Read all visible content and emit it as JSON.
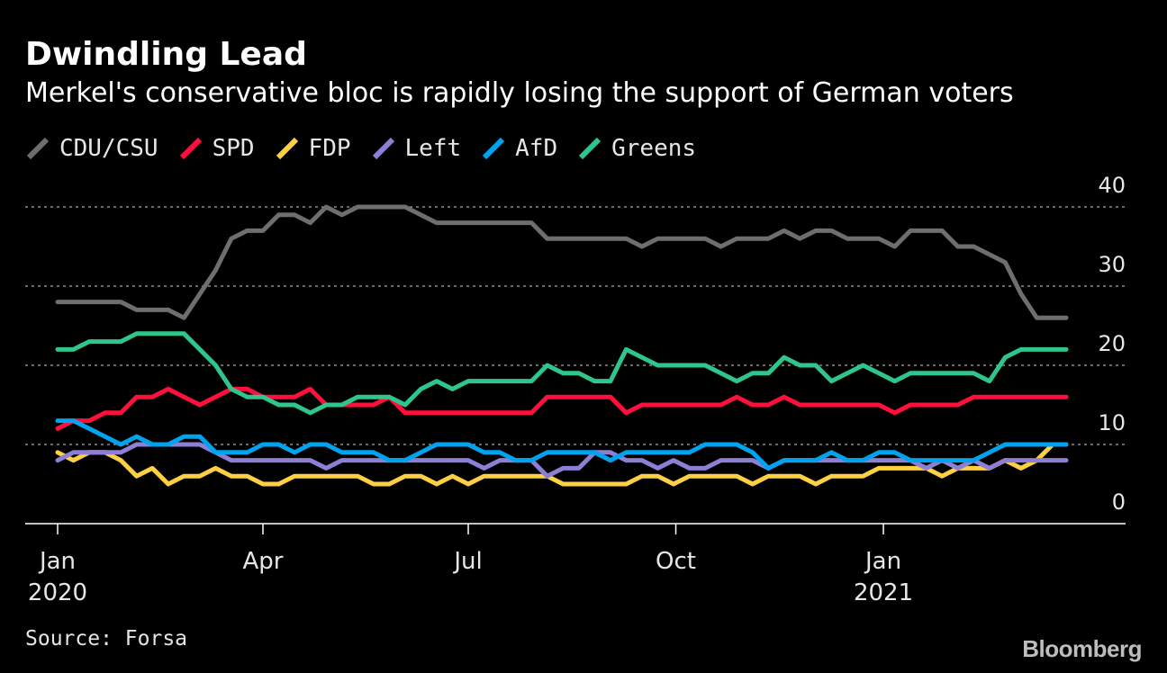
{
  "header": {
    "title": "Dwindling Lead",
    "subtitle": "Merkel's conservative bloc is rapidly losing the support of German voters"
  },
  "footer": {
    "source": "Source: Forsa",
    "brand": "Bloomberg"
  },
  "chart_data": {
    "type": "line",
    "title": "Dwindling Lead",
    "subtitle": "Merkel's conservative bloc is rapidly losing the support of German voters",
    "xlabel": "",
    "ylabel": "",
    "x_range": [
      "2020-01-01",
      "2021-03-23"
    ],
    "ylim": [
      0,
      40
    ],
    "yticks": [
      0,
      10,
      20,
      30,
      40
    ],
    "ygrid": true,
    "legend_position": "top-left",
    "x_ticks": [
      {
        "date": "2020-01-01",
        "label": "Jan",
        "sublabel": "2020"
      },
      {
        "date": "2020-04-01",
        "label": "Apr",
        "sublabel": ""
      },
      {
        "date": "2020-07-01",
        "label": "Jul",
        "sublabel": ""
      },
      {
        "date": "2020-10-01",
        "label": "Oct",
        "sublabel": ""
      },
      {
        "date": "2021-01-01",
        "label": "Jan",
        "sublabel": "2021"
      }
    ],
    "series": [
      {
        "name": "CDU/CSU",
        "color": "#6e6e6e",
        "x": [
          "2020-01-01",
          "2020-01-08",
          "2020-01-15",
          "2020-01-22",
          "2020-01-29",
          "2020-02-05",
          "2020-02-12",
          "2020-02-19",
          "2020-02-26",
          "2020-03-04",
          "2020-03-11",
          "2020-03-18",
          "2020-03-25",
          "2020-04-01",
          "2020-04-08",
          "2020-04-15",
          "2020-04-22",
          "2020-04-29",
          "2020-05-06",
          "2020-05-13",
          "2020-05-20",
          "2020-05-27",
          "2020-06-03",
          "2020-06-10",
          "2020-06-17",
          "2020-06-24",
          "2020-07-01",
          "2020-07-08",
          "2020-07-15",
          "2020-07-22",
          "2020-07-29",
          "2020-08-05",
          "2020-08-12",
          "2020-08-19",
          "2020-08-26",
          "2020-09-02",
          "2020-09-09",
          "2020-09-16",
          "2020-09-23",
          "2020-09-30",
          "2020-10-07",
          "2020-10-14",
          "2020-10-21",
          "2020-10-28",
          "2020-11-04",
          "2020-11-11",
          "2020-11-18",
          "2020-11-25",
          "2020-12-02",
          "2020-12-09",
          "2020-12-16",
          "2020-12-23",
          "2020-12-30",
          "2021-01-06",
          "2021-01-13",
          "2021-01-20",
          "2021-01-27",
          "2021-02-03",
          "2021-02-10",
          "2021-02-17",
          "2021-02-24",
          "2021-03-03",
          "2021-03-10",
          "2021-03-17",
          "2021-03-23"
        ],
        "values": [
          28,
          28,
          28,
          28,
          28,
          27,
          27,
          27,
          26,
          29,
          32,
          36,
          37,
          37,
          39,
          39,
          38,
          40,
          39,
          40,
          40,
          40,
          40,
          39,
          38,
          38,
          38,
          38,
          38,
          38,
          38,
          36,
          36,
          36,
          36,
          36,
          36,
          35,
          36,
          36,
          36,
          36,
          35,
          36,
          36,
          36,
          37,
          36,
          37,
          37,
          36,
          36,
          36,
          35,
          37,
          37,
          37,
          35,
          35,
          34,
          33,
          29,
          26,
          26,
          26
        ]
      },
      {
        "name": "SPD",
        "color": "#ff0f3c",
        "x": [
          "2020-01-01",
          "2020-01-08",
          "2020-01-15",
          "2020-01-22",
          "2020-01-29",
          "2020-02-05",
          "2020-02-12",
          "2020-02-19",
          "2020-02-26",
          "2020-03-04",
          "2020-03-11",
          "2020-03-18",
          "2020-03-25",
          "2020-04-01",
          "2020-04-08",
          "2020-04-15",
          "2020-04-22",
          "2020-04-29",
          "2020-05-06",
          "2020-05-13",
          "2020-05-20",
          "2020-05-27",
          "2020-06-03",
          "2020-06-10",
          "2020-06-17",
          "2020-06-24",
          "2020-07-01",
          "2020-07-08",
          "2020-07-15",
          "2020-07-22",
          "2020-07-29",
          "2020-08-05",
          "2020-08-12",
          "2020-08-19",
          "2020-08-26",
          "2020-09-02",
          "2020-09-09",
          "2020-09-16",
          "2020-09-23",
          "2020-09-30",
          "2020-10-07",
          "2020-10-14",
          "2020-10-21",
          "2020-10-28",
          "2020-11-04",
          "2020-11-11",
          "2020-11-18",
          "2020-11-25",
          "2020-12-02",
          "2020-12-09",
          "2020-12-16",
          "2020-12-23",
          "2020-12-30",
          "2021-01-06",
          "2021-01-13",
          "2021-01-20",
          "2021-01-27",
          "2021-02-03",
          "2021-02-10",
          "2021-02-17",
          "2021-02-24",
          "2021-03-03",
          "2021-03-10",
          "2021-03-17",
          "2021-03-23"
        ],
        "values": [
          12,
          13,
          13,
          14,
          14,
          16,
          16,
          17,
          16,
          15,
          16,
          17,
          17,
          16,
          16,
          16,
          17,
          15,
          15,
          15,
          15,
          16,
          14,
          14,
          14,
          14,
          14,
          14,
          14,
          14,
          14,
          16,
          16,
          16,
          16,
          16,
          14,
          15,
          15,
          15,
          15,
          15,
          15,
          16,
          15,
          15,
          16,
          15,
          15,
          15,
          15,
          15,
          15,
          14,
          15,
          15,
          15,
          15,
          16,
          16,
          16,
          16,
          16,
          16,
          16
        ]
      },
      {
        "name": "FDP",
        "color": "#fdd043",
        "x": [
          "2020-01-01",
          "2020-01-08",
          "2020-01-15",
          "2020-01-22",
          "2020-01-29",
          "2020-02-05",
          "2020-02-12",
          "2020-02-19",
          "2020-02-26",
          "2020-03-04",
          "2020-03-11",
          "2020-03-18",
          "2020-03-25",
          "2020-04-01",
          "2020-04-08",
          "2020-04-15",
          "2020-04-22",
          "2020-04-29",
          "2020-05-06",
          "2020-05-13",
          "2020-05-20",
          "2020-05-27",
          "2020-06-03",
          "2020-06-10",
          "2020-06-17",
          "2020-06-24",
          "2020-07-01",
          "2020-07-08",
          "2020-07-15",
          "2020-07-22",
          "2020-07-29",
          "2020-08-05",
          "2020-08-12",
          "2020-08-19",
          "2020-08-26",
          "2020-09-02",
          "2020-09-09",
          "2020-09-16",
          "2020-09-23",
          "2020-09-30",
          "2020-10-07",
          "2020-10-14",
          "2020-10-21",
          "2020-10-28",
          "2020-11-04",
          "2020-11-11",
          "2020-11-18",
          "2020-11-25",
          "2020-12-02",
          "2020-12-09",
          "2020-12-16",
          "2020-12-23",
          "2020-12-30",
          "2021-01-06",
          "2021-01-13",
          "2021-01-20",
          "2021-01-27",
          "2021-02-03",
          "2021-02-10",
          "2021-02-17",
          "2021-02-24",
          "2021-03-03",
          "2021-03-10",
          "2021-03-17",
          "2021-03-23"
        ],
        "values": [
          9,
          8,
          9,
          9,
          8,
          6,
          7,
          5,
          6,
          6,
          7,
          6,
          6,
          5,
          5,
          6,
          6,
          6,
          6,
          6,
          5,
          5,
          6,
          6,
          5,
          6,
          5,
          6,
          6,
          6,
          6,
          6,
          5,
          5,
          5,
          5,
          5,
          6,
          6,
          5,
          6,
          6,
          6,
          6,
          5,
          6,
          6,
          6,
          5,
          6,
          6,
          6,
          7,
          7,
          7,
          7,
          6,
          7,
          7,
          7,
          8,
          7,
          8,
          10,
          10
        ]
      },
      {
        "name": "Left",
        "color": "#8e7fd6",
        "x": [
          "2020-01-01",
          "2020-01-08",
          "2020-01-15",
          "2020-01-22",
          "2020-01-29",
          "2020-02-05",
          "2020-02-12",
          "2020-02-19",
          "2020-02-26",
          "2020-03-04",
          "2020-03-11",
          "2020-03-18",
          "2020-03-25",
          "2020-04-01",
          "2020-04-08",
          "2020-04-15",
          "2020-04-22",
          "2020-04-29",
          "2020-05-06",
          "2020-05-13",
          "2020-05-20",
          "2020-05-27",
          "2020-06-03",
          "2020-06-10",
          "2020-06-17",
          "2020-06-24",
          "2020-07-01",
          "2020-07-08",
          "2020-07-15",
          "2020-07-22",
          "2020-07-29",
          "2020-08-05",
          "2020-08-12",
          "2020-08-19",
          "2020-08-26",
          "2020-09-02",
          "2020-09-09",
          "2020-09-16",
          "2020-09-23",
          "2020-09-30",
          "2020-10-07",
          "2020-10-14",
          "2020-10-21",
          "2020-10-28",
          "2020-11-04",
          "2020-11-11",
          "2020-11-18",
          "2020-11-25",
          "2020-12-02",
          "2020-12-09",
          "2020-12-16",
          "2020-12-23",
          "2020-12-30",
          "2021-01-06",
          "2021-01-13",
          "2021-01-20",
          "2021-01-27",
          "2021-02-03",
          "2021-02-10",
          "2021-02-17",
          "2021-02-24",
          "2021-03-03",
          "2021-03-10",
          "2021-03-17",
          "2021-03-23"
        ],
        "values": [
          8,
          9,
          9,
          9,
          9,
          10,
          10,
          10,
          10,
          10,
          9,
          8,
          8,
          8,
          8,
          8,
          8,
          7,
          8,
          8,
          8,
          8,
          8,
          8,
          8,
          8,
          8,
          7,
          8,
          8,
          8,
          6,
          7,
          7,
          9,
          9,
          8,
          8,
          7,
          8,
          7,
          7,
          8,
          8,
          8,
          7,
          8,
          8,
          8,
          8,
          8,
          8,
          8,
          8,
          8,
          7,
          8,
          7,
          8,
          7,
          8,
          8,
          8,
          8,
          8
        ]
      },
      {
        "name": "AfD",
        "color": "#00a3ee",
        "x": [
          "2020-01-01",
          "2020-01-08",
          "2020-01-15",
          "2020-01-22",
          "2020-01-29",
          "2020-02-05",
          "2020-02-12",
          "2020-02-19",
          "2020-02-26",
          "2020-03-04",
          "2020-03-11",
          "2020-03-18",
          "2020-03-25",
          "2020-04-01",
          "2020-04-08",
          "2020-04-15",
          "2020-04-22",
          "2020-04-29",
          "2020-05-06",
          "2020-05-13",
          "2020-05-20",
          "2020-05-27",
          "2020-06-03",
          "2020-06-10",
          "2020-06-17",
          "2020-06-24",
          "2020-07-01",
          "2020-07-08",
          "2020-07-15",
          "2020-07-22",
          "2020-07-29",
          "2020-08-05",
          "2020-08-12",
          "2020-08-19",
          "2020-08-26",
          "2020-09-02",
          "2020-09-09",
          "2020-09-16",
          "2020-09-23",
          "2020-09-30",
          "2020-10-07",
          "2020-10-14",
          "2020-10-21",
          "2020-10-28",
          "2020-11-04",
          "2020-11-11",
          "2020-11-18",
          "2020-11-25",
          "2020-12-02",
          "2020-12-09",
          "2020-12-16",
          "2020-12-23",
          "2020-12-30",
          "2021-01-06",
          "2021-01-13",
          "2021-01-20",
          "2021-01-27",
          "2021-02-03",
          "2021-02-10",
          "2021-02-17",
          "2021-02-24",
          "2021-03-03",
          "2021-03-10",
          "2021-03-17",
          "2021-03-23"
        ],
        "values": [
          13,
          13,
          12,
          11,
          10,
          11,
          10,
          10,
          11,
          11,
          9,
          9,
          9,
          10,
          10,
          9,
          10,
          10,
          9,
          9,
          9,
          8,
          8,
          9,
          10,
          10,
          10,
          9,
          9,
          8,
          8,
          9,
          9,
          9,
          9,
          8,
          9,
          9,
          9,
          9,
          9,
          10,
          10,
          10,
          9,
          7,
          8,
          8,
          8,
          9,
          8,
          8,
          9,
          9,
          8,
          8,
          8,
          8,
          8,
          9,
          10,
          10,
          10,
          10,
          10
        ]
      },
      {
        "name": "Greens",
        "color": "#2ec68c",
        "x": [
          "2020-01-01",
          "2020-01-08",
          "2020-01-15",
          "2020-01-22",
          "2020-01-29",
          "2020-02-05",
          "2020-02-12",
          "2020-02-19",
          "2020-02-26",
          "2020-03-04",
          "2020-03-11",
          "2020-03-18",
          "2020-03-25",
          "2020-04-01",
          "2020-04-08",
          "2020-04-15",
          "2020-04-22",
          "2020-04-29",
          "2020-05-06",
          "2020-05-13",
          "2020-05-20",
          "2020-05-27",
          "2020-06-03",
          "2020-06-10",
          "2020-06-17",
          "2020-06-24",
          "2020-07-01",
          "2020-07-08",
          "2020-07-15",
          "2020-07-22",
          "2020-07-29",
          "2020-08-05",
          "2020-08-12",
          "2020-08-19",
          "2020-08-26",
          "2020-09-02",
          "2020-09-09",
          "2020-09-16",
          "2020-09-23",
          "2020-09-30",
          "2020-10-07",
          "2020-10-14",
          "2020-10-21",
          "2020-10-28",
          "2020-11-04",
          "2020-11-11",
          "2020-11-18",
          "2020-11-25",
          "2020-12-02",
          "2020-12-09",
          "2020-12-16",
          "2020-12-23",
          "2020-12-30",
          "2021-01-06",
          "2021-01-13",
          "2021-01-20",
          "2021-01-27",
          "2021-02-03",
          "2021-02-10",
          "2021-02-17",
          "2021-02-24",
          "2021-03-03",
          "2021-03-10",
          "2021-03-17",
          "2021-03-23"
        ],
        "values": [
          22,
          22,
          23,
          23,
          23,
          24,
          24,
          24,
          24,
          22,
          20,
          17,
          16,
          16,
          15,
          15,
          14,
          15,
          15,
          16,
          16,
          16,
          15,
          17,
          18,
          17,
          18,
          18,
          18,
          18,
          18,
          20,
          19,
          19,
          18,
          18,
          22,
          21,
          20,
          20,
          20,
          20,
          19,
          18,
          19,
          19,
          21,
          20,
          20,
          18,
          19,
          20,
          19,
          18,
          19,
          19,
          19,
          19,
          19,
          18,
          21,
          22,
          22,
          22,
          22
        ]
      }
    ]
  }
}
